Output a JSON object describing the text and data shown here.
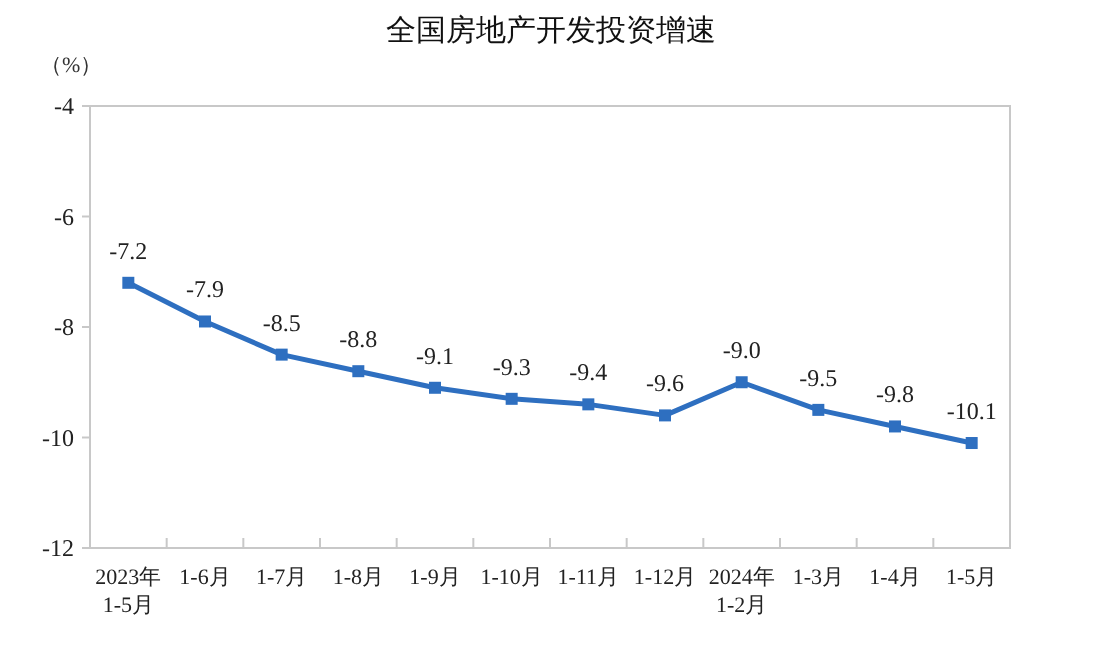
{
  "chart_data": {
    "type": "line",
    "title": "全国房地产开发投资增速",
    "ylabel": "（%）",
    "categories": [
      "2023年\n1-5月",
      "1-6月",
      "1-7月",
      "1-8月",
      "1-9月",
      "1-10月",
      "1-11月",
      "1-12月",
      "2024年\n1-2月",
      "1-3月",
      "1-4月",
      "1-5月"
    ],
    "series": [
      {
        "color": "#2e6fc0",
        "values": [
          -7.2,
          -7.9,
          -8.5,
          -8.8,
          -9.1,
          -9.3,
          -9.4,
          -9.6,
          -9.0,
          -9.5,
          -9.8,
          -10.1
        ],
        "value_labels": [
          "-7.2",
          "-7.9",
          "-8.5",
          "-8.8",
          "-9.1",
          "-9.3",
          "-9.4",
          "-9.6",
          "-9.0",
          "-9.5",
          "-9.8",
          "-10.1"
        ]
      }
    ],
    "ylim": [
      -12,
      -4
    ],
    "yticks": [
      -12,
      -10,
      -8,
      -6,
      -4
    ],
    "marker": "square",
    "line_style": "solid",
    "grid": false
  }
}
